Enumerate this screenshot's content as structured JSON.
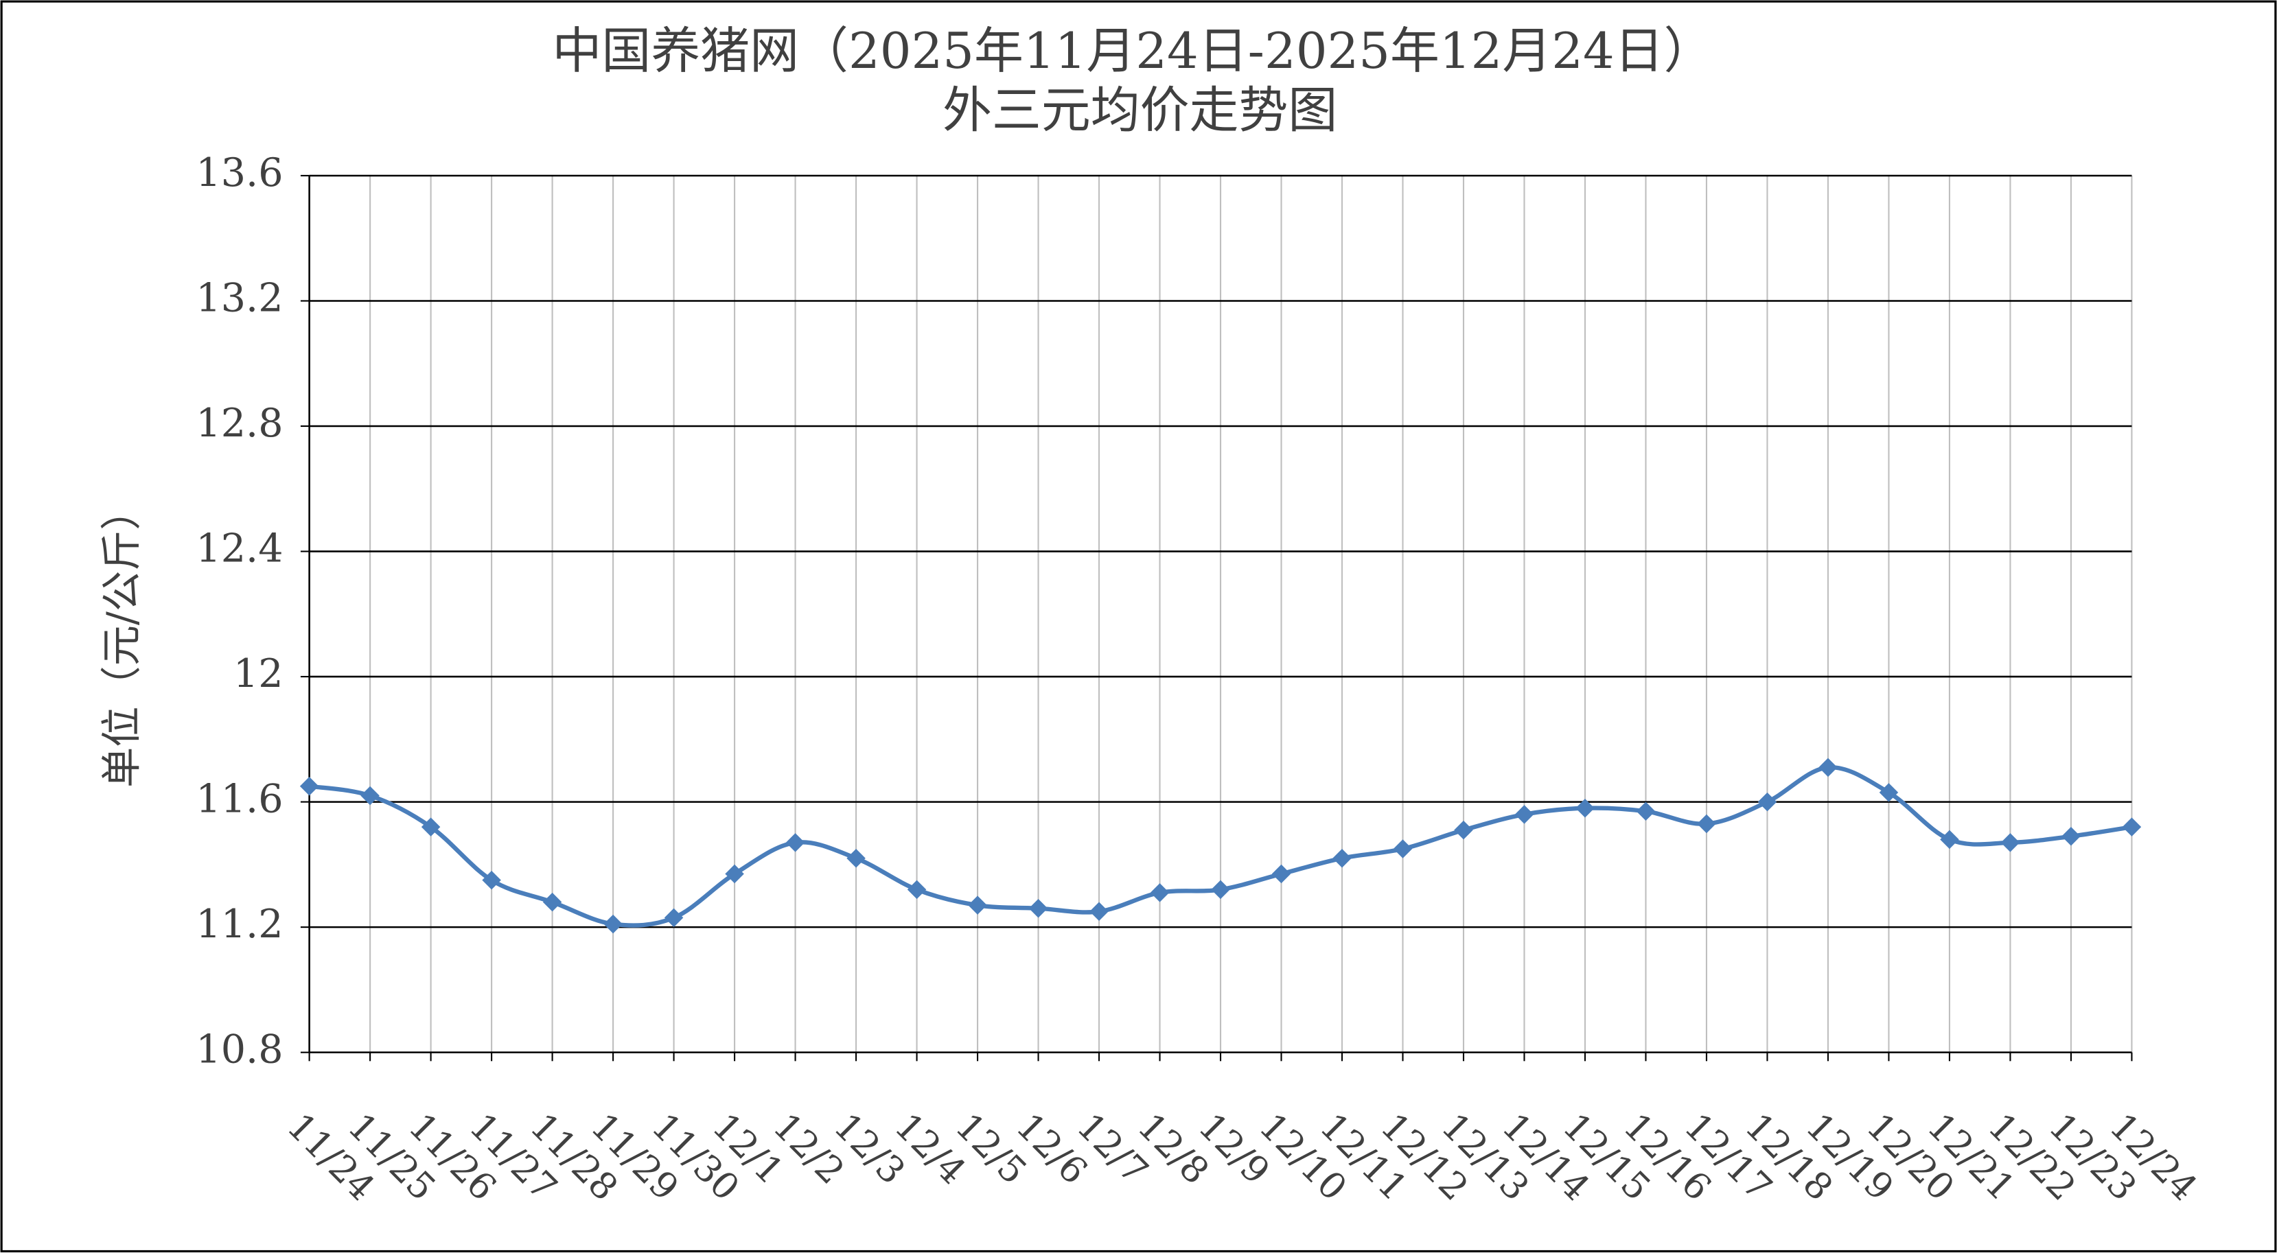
{
  "chart_data": {
    "type": "line",
    "title": "中国养猪网（2025年11月24日-2025年12月24日）",
    "subtitle": "外三元均价走势图",
    "y_label": "单位（元/公斤）",
    "categories": [
      "11/24",
      "11/25",
      "11/26",
      "11/27",
      "11/28",
      "11/29",
      "11/30",
      "12/1",
      "12/2",
      "12/3",
      "12/4",
      "12/5",
      "12/6",
      "12/7",
      "12/8",
      "12/9",
      "12/10",
      "12/11",
      "12/12",
      "12/13",
      "12/14",
      "12/15",
      "12/16",
      "12/17",
      "12/18",
      "12/19",
      "12/20",
      "12/21",
      "12/22",
      "12/23",
      "12/24"
    ],
    "series": [
      {
        "color": "#4a7ebb",
        "values": [
          11.65,
          11.62,
          11.52,
          11.35,
          11.28,
          11.21,
          11.23,
          11.37,
          11.47,
          11.42,
          11.32,
          11.27,
          11.26,
          11.25,
          11.31,
          11.32,
          11.37,
          11.42,
          11.45,
          11.51,
          11.56,
          11.58,
          11.57,
          11.53,
          11.6,
          11.71,
          11.63,
          11.48,
          11.47,
          11.49,
          11.52
        ]
      }
    ],
    "ylim": [
      10.8,
      13.6
    ],
    "yticks": [
      10.8,
      11.2,
      11.6,
      12,
      12.4,
      12.8,
      13.2,
      13.6
    ],
    "grid": true
  }
}
